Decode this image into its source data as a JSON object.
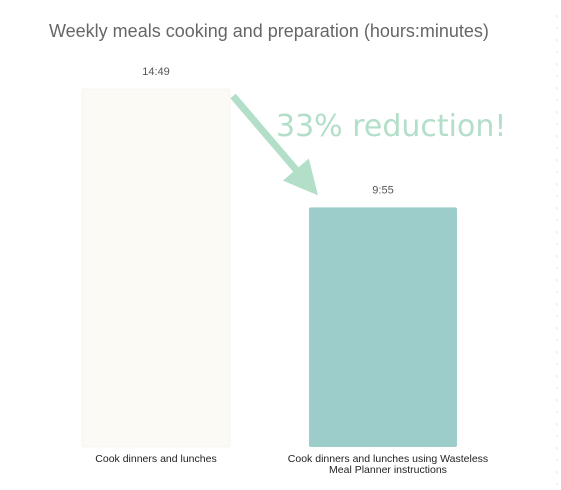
{
  "chart_data": {
    "type": "bar",
    "title": "Weekly meals cooking and preparation (hours:minutes)",
    "categories": [
      [
        "Cook dinners and lunches"
      ],
      [
        "Cook dinners and lunches using Wasteless",
        "Meal Planner instructions"
      ]
    ],
    "values_minutes": [
      889,
      595
    ],
    "value_labels": [
      "14:49",
      "9:55"
    ],
    "ylim_minutes": [
      0,
      889
    ],
    "grid": false,
    "legend": "none",
    "bar_colors": [
      "#fbfaf5",
      "#9ccdcb"
    ],
    "annotation": {
      "text": "33% reduction!",
      "color": "#b3dfc9",
      "arrow_from": 0,
      "arrow_to": 1
    }
  },
  "colors": {
    "title": "#666666",
    "value_label": "#555555",
    "category_label": "#222222",
    "right_dots": "#dddddd"
  }
}
